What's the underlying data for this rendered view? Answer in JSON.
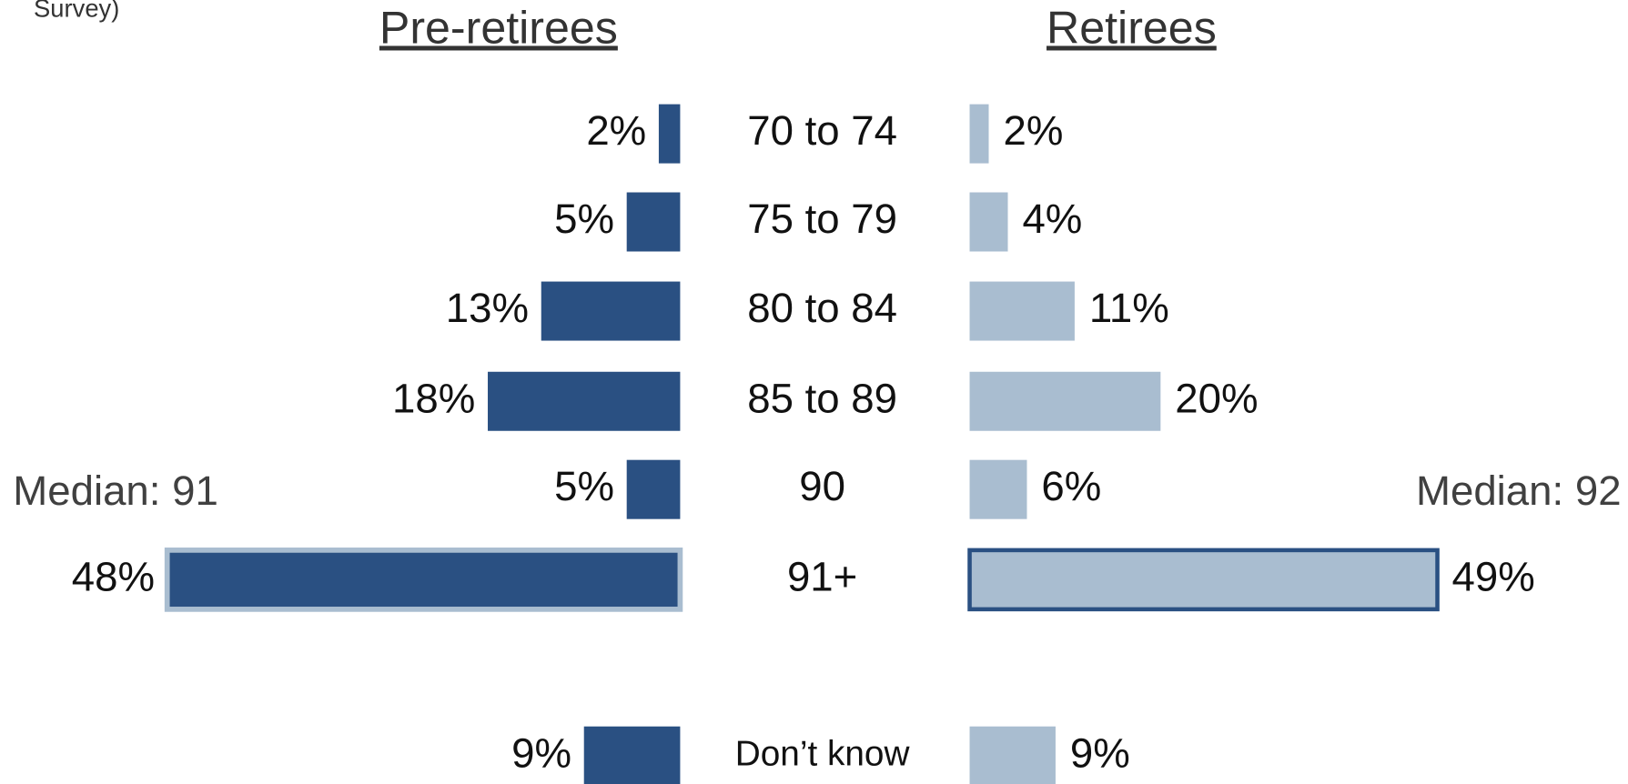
{
  "chart_data": {
    "type": "butterfly",
    "subtitle": "Survey)",
    "categories": [
      "70 to 74",
      "75 to 79",
      "80 to 84",
      "85 to 89",
      "90",
      "91+",
      "Don’t know"
    ],
    "series": [
      {
        "name": "Pre-retirees",
        "color": "#2a5082",
        "values": [
          2,
          5,
          13,
          18,
          5,
          48,
          9
        ],
        "value_labels": [
          "2%",
          "5%",
          "13%",
          "18%",
          "5%",
          "48%",
          "9%"
        ]
      },
      {
        "name": "Retirees",
        "color": "#a9bdd0",
        "values": [
          2,
          4,
          11,
          20,
          6,
          49,
          9
        ],
        "value_labels": [
          "2%",
          "4%",
          "11%",
          "20%",
          "6%",
          "49%",
          "9%"
        ]
      }
    ],
    "annotations": [
      "Median: 91",
      "Median: 92"
    ],
    "xlim": [
      0,
      50
    ]
  }
}
